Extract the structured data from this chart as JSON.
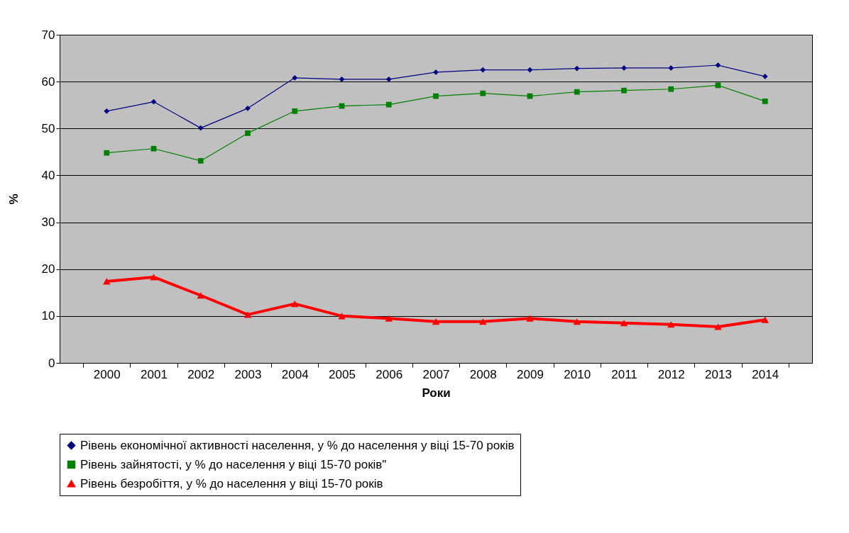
{
  "chart_data": {
    "type": "line",
    "xlabel": "Роки",
    "ylabel": "%",
    "categories": [
      "2000",
      "2001",
      "2002",
      "2003",
      "2004",
      "2005",
      "2006",
      "2007",
      "2008",
      "2009",
      "2010",
      "2011",
      "2012",
      "2013",
      "2014"
    ],
    "series": [
      {
        "name": "Рівень економічної активності населення, у % до населення у віці 15-70 років",
        "color": "#000080",
        "marker": "diamond",
        "values": [
          53.7,
          55.7,
          50.1,
          54.3,
          60.8,
          60.5,
          60.5,
          62.0,
          62.5,
          62.5,
          62.8,
          62.9,
          62.9,
          63.5,
          61.1
        ]
      },
      {
        "name": "Рівень зайнятості, у % до населення у віці 15-70 років\"",
        "color": "#008000",
        "marker": "square",
        "values": [
          44.8,
          45.7,
          43.1,
          49.0,
          53.7,
          54.8,
          55.1,
          56.9,
          57.5,
          56.9,
          57.8,
          58.1,
          58.4,
          59.2,
          55.8
        ]
      },
      {
        "name": "Рівень безробіття, у % до населення у віці 15-70 років",
        "color": "#ff0000",
        "marker": "triangle",
        "values": [
          17.4,
          18.3,
          14.4,
          10.3,
          12.6,
          10.0,
          9.5,
          8.8,
          8.8,
          9.5,
          8.8,
          8.5,
          8.2,
          7.7,
          9.2
        ]
      }
    ],
    "ylim": [
      0,
      70
    ],
    "yticks": [
      0,
      10,
      20,
      30,
      40,
      50,
      60,
      70
    ],
    "grid": "y",
    "legend": "bottom"
  }
}
